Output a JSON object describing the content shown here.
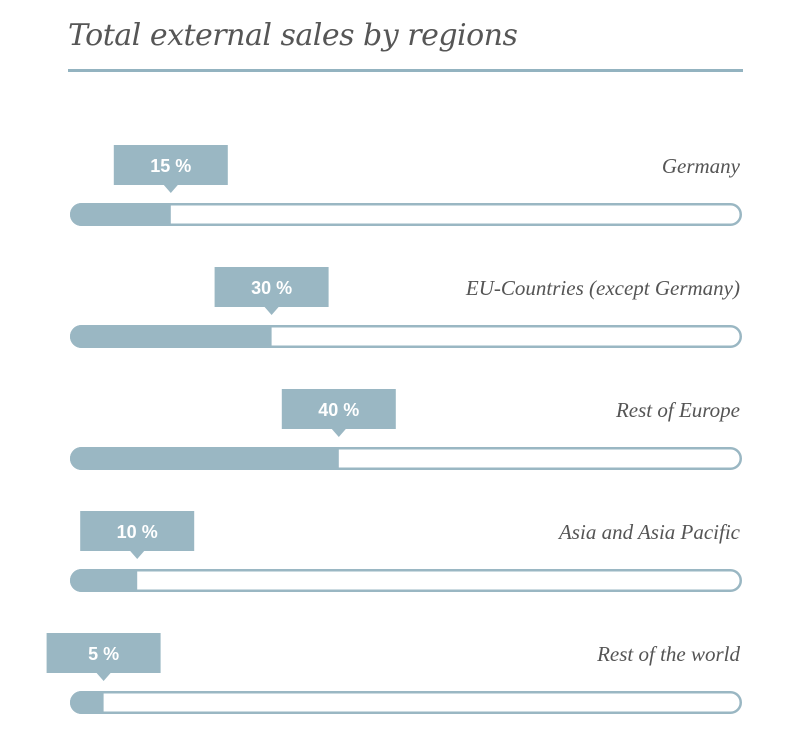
{
  "title": "Total external sales by regions",
  "colors": {
    "accent": "#9ab7c3",
    "title": "#565656",
    "label": "#555555"
  },
  "chart_data": {
    "type": "bar",
    "orientation": "horizontal",
    "title": "Total external sales by regions",
    "categories": [
      "Germany",
      "EU-Countries (except Germany)",
      "Rest of Europe",
      "Asia and Asia Pacific",
      "Rest of the world"
    ],
    "values": [
      15,
      30,
      40,
      10,
      5
    ],
    "value_labels": [
      "15 %",
      "30 %",
      "40 %",
      "10 %",
      "5 %"
    ],
    "xlim": [
      0,
      100
    ],
    "unit": "%",
    "grid": false
  }
}
